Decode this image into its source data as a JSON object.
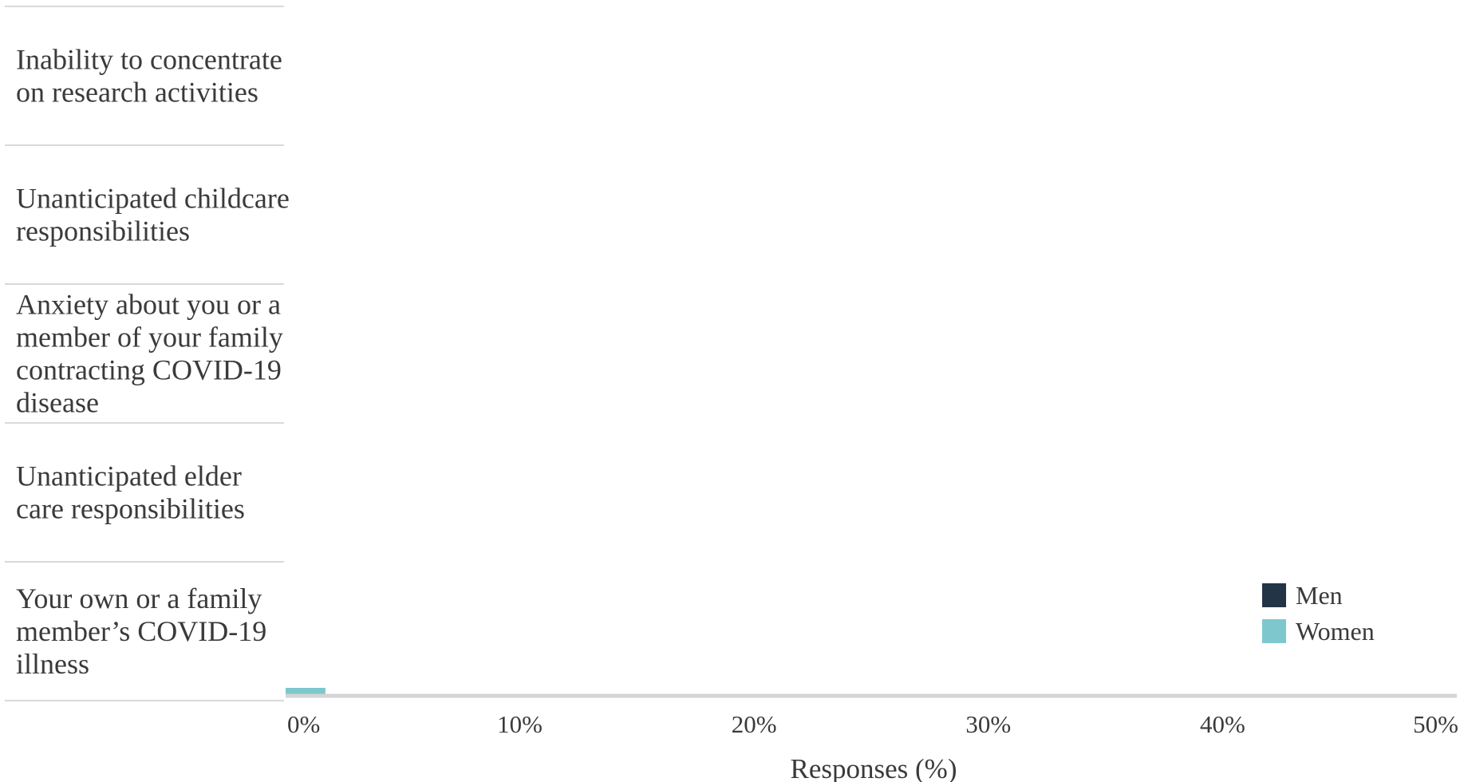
{
  "chart_data": {
    "type": "bar",
    "orientation": "horizontal",
    "title": "",
    "xlabel": "Responses (%)",
    "ylabel": "",
    "xlim": [
      0,
      50
    ],
    "x_ticks": [
      "0%",
      "10%",
      "20%",
      "30%",
      "40%",
      "50%"
    ],
    "x_tick_values": [
      0,
      10,
      20,
      30,
      40,
      50
    ],
    "grid": "horizontal row separators only",
    "legend_position": "bottom-right",
    "categories": [
      [
        "Inability to concentrate",
        "on research activities"
      ],
      [
        "Unanticipated childcare",
        "responsibilities"
      ],
      [
        "Anxiety about you or a",
        "member of your family",
        "contracting COVID-19",
        "disease"
      ],
      [
        "Unanticipated elder",
        "care responsibilities"
      ],
      [
        "Your own or a family",
        "member’s COVID-19",
        "illness"
      ]
    ],
    "series": [
      {
        "name": "Men",
        "color": "#243447",
        "values": [
          0,
          0,
          0,
          0,
          0
        ]
      },
      {
        "name": "Women",
        "color": "#7ec8cd",
        "values": [
          0,
          0,
          0,
          0,
          1.7
        ]
      }
    ]
  }
}
